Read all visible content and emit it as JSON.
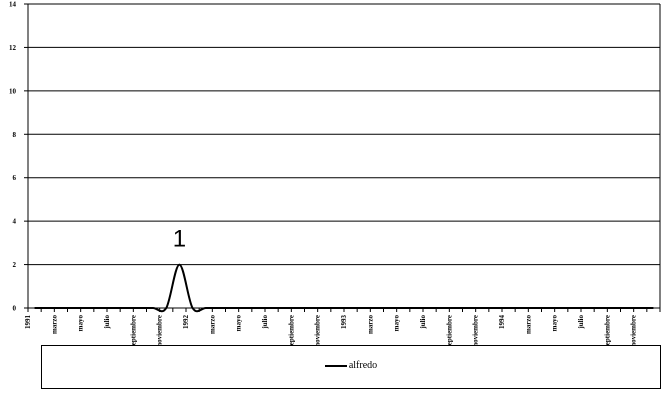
{
  "chart_data": {
    "type": "line",
    "ylim": [
      0,
      14
    ],
    "yticks": [
      0,
      2,
      4,
      6,
      8,
      10,
      12,
      14
    ],
    "categories": [
      "1991",
      "marzo",
      "mayo",
      "julio",
      "septiembre",
      "noviembre",
      "1992",
      "marzo",
      "mayo",
      "julio",
      "septiembre",
      "noviembre",
      "1993",
      "marzo",
      "mayo",
      "julio",
      "septiembre",
      "noviembre",
      "1994",
      "marzo",
      "mayo",
      "julio",
      "septiembre",
      "noviembre"
    ],
    "x": [
      "1991-01",
      "1991-02",
      "1991-03",
      "1991-04",
      "1991-05",
      "1991-06",
      "1991-07",
      "1991-08",
      "1991-09",
      "1991-10",
      "1991-11",
      "1991-12",
      "1992-01",
      "1992-02",
      "1992-03",
      "1992-04",
      "1992-05",
      "1992-06",
      "1992-07",
      "1992-08",
      "1992-09",
      "1992-10",
      "1992-11",
      "1992-12",
      "1993-01",
      "1993-02",
      "1993-03",
      "1993-04",
      "1993-05",
      "1993-06",
      "1993-07",
      "1993-08",
      "1993-09",
      "1993-10",
      "1993-11",
      "1993-12",
      "1994-01",
      "1994-02",
      "1994-03",
      "1994-04",
      "1994-05",
      "1994-06",
      "1994-07",
      "1994-08",
      "1994-09",
      "1994-10",
      "1994-11",
      "1994-12"
    ],
    "series": [
      {
        "name": "alfredo",
        "values": [
          0,
          0,
          0,
          0,
          0,
          0,
          0,
          0,
          0,
          0,
          0,
          2,
          0,
          0,
          0,
          0,
          0,
          0,
          0,
          0,
          0,
          0,
          0,
          0,
          0,
          0,
          0,
          0,
          0,
          0,
          0,
          0,
          0,
          0,
          0,
          0,
          0,
          0,
          0,
          0,
          0,
          0,
          0,
          0,
          0,
          0,
          0,
          0
        ],
        "color": "#000000"
      }
    ],
    "annotations": [
      {
        "text": "1",
        "x": "1991-12",
        "y": 2
      }
    ],
    "grid": true,
    "legend_position": "bottom"
  }
}
